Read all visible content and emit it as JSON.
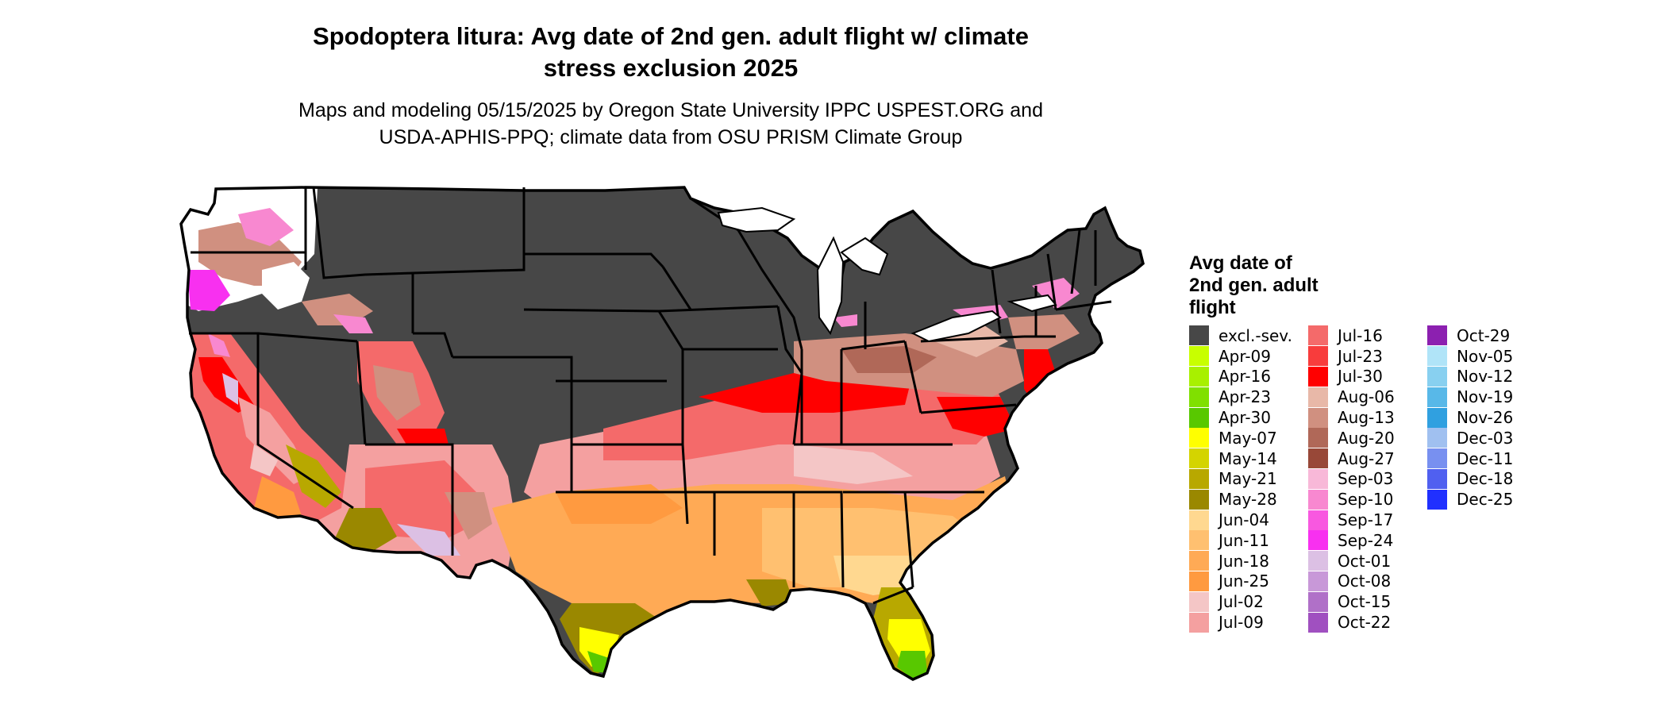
{
  "header": {
    "title": "Spodoptera litura: Avg date of 2nd gen. adult flight w/ climate\nstress exclusion 2025",
    "subtitle": "Maps and modeling 05/15/2025 by Oregon State University IPPC USPEST.ORG and\nUSDA-APHIS-PPQ; climate data from OSU PRISM Climate Group"
  },
  "legend": {
    "title": "Avg date of\n2nd gen. adult\nflight",
    "columns": [
      [
        {
          "label": "excl.-sev.",
          "color": "#474747"
        },
        {
          "label": "Apr-09",
          "color": "#c8ff00"
        },
        {
          "label": "Apr-16",
          "color": "#a8f000"
        },
        {
          "label": "Apr-23",
          "color": "#80e000"
        },
        {
          "label": "Apr-30",
          "color": "#58c800"
        },
        {
          "label": "May-07",
          "color": "#ffff00"
        },
        {
          "label": "May-14",
          "color": "#d4d400"
        },
        {
          "label": "May-21",
          "color": "#b8a800"
        },
        {
          "label": "May-28",
          "color": "#9a8800"
        },
        {
          "label": "Jun-04",
          "color": "#ffd890"
        },
        {
          "label": "Jun-11",
          "color": "#ffc070"
        },
        {
          "label": "Jun-18",
          "color": "#ffaa55"
        },
        {
          "label": "Jun-25",
          "color": "#ff9a40"
        },
        {
          "label": "Jul-02",
          "color": "#f4c6c6"
        },
        {
          "label": "Jul-09",
          "color": "#f4a0a0"
        }
      ],
      [
        {
          "label": "Jul-16",
          "color": "#f46a6a"
        },
        {
          "label": "Jul-23",
          "color": "#f83c3c"
        },
        {
          "label": "Jul-30",
          "color": "#ff0000"
        },
        {
          "label": "Aug-06",
          "color": "#e8b8a8"
        },
        {
          "label": "Aug-13",
          "color": "#d09080"
        },
        {
          "label": "Aug-20",
          "color": "#b06858"
        },
        {
          "label": "Aug-27",
          "color": "#984838"
        },
        {
          "label": "Sep-03",
          "color": "#f8b8d8"
        },
        {
          "label": "Sep-10",
          "color": "#f888d0"
        },
        {
          "label": "Sep-17",
          "color": "#f858e0"
        },
        {
          "label": "Sep-24",
          "color": "#f830f0"
        },
        {
          "label": "Oct-01",
          "color": "#dcc0e4"
        },
        {
          "label": "Oct-08",
          "color": "#c898d8"
        },
        {
          "label": "Oct-15",
          "color": "#b070c8"
        },
        {
          "label": "Oct-22",
          "color": "#a050c0"
        }
      ],
      [
        {
          "label": "Oct-29",
          "color": "#8c20b0"
        },
        {
          "label": "Nov-05",
          "color": "#b0e4f8"
        },
        {
          "label": "Nov-12",
          "color": "#88d0f0"
        },
        {
          "label": "Nov-19",
          "color": "#58b8e8"
        },
        {
          "label": "Nov-26",
          "color": "#30a0e0"
        },
        {
          "label": "Dec-03",
          "color": "#a0c0f0"
        },
        {
          "label": "Dec-11",
          "color": "#7890f0"
        },
        {
          "label": "Dec-18",
          "color": "#5060f0"
        },
        {
          "label": "Dec-25",
          "color": "#2030ff"
        }
      ]
    ]
  }
}
